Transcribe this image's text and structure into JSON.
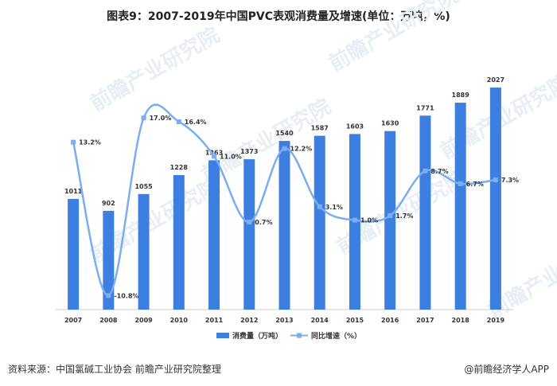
{
  "title": "图表9：2007-2019年中国PVC表观消费量及增速(单位：万吨，%)",
  "watermark": "前瞻产业研究院",
  "footer": {
    "source": "资料来源：中国氯碱工业协会 前瞻产业研究院整理",
    "brand": "@前瞻经济学人APP"
  },
  "chart_data": {
    "type": "bar",
    "categories": [
      "2007",
      "2008",
      "2009",
      "2010",
      "2011",
      "2012",
      "2013",
      "2014",
      "2015",
      "2016",
      "2017",
      "2018",
      "2019"
    ],
    "series": [
      {
        "name": "消费量（万吨）",
        "type": "bar",
        "color": "#3d7fe0",
        "values": [
          1011,
          902,
          1055,
          1228,
          1363,
          1373,
          1540,
          1587,
          1603,
          1630,
          1771,
          1889,
          2027
        ],
        "labels": [
          "1011",
          "902",
          "1055",
          "1228",
          "1363",
          "1373",
          "1540",
          "1587",
          "1603",
          "1630",
          "1771",
          "1889",
          "2027"
        ]
      },
      {
        "name": "同比增速（%）",
        "type": "line",
        "color": "#7aaef0",
        "values": [
          13.2,
          -10.8,
          17.0,
          16.4,
          11.0,
          0.7,
          12.2,
          3.1,
          1.0,
          1.7,
          8.7,
          6.7,
          7.3
        ],
        "labels": [
          "13.2%",
          "-10.8%",
          "17.0%",
          "16.4%",
          "11.0%",
          "0.7%",
          "12.2%",
          "3.1%",
          "1.0%",
          "1.7%",
          "8.7%",
          "6.7%",
          "7.3%"
        ]
      }
    ],
    "ylim_bar": [
      0,
      2100
    ],
    "ylim_line": [
      -13,
      23
    ],
    "legend_position": "bottom"
  }
}
